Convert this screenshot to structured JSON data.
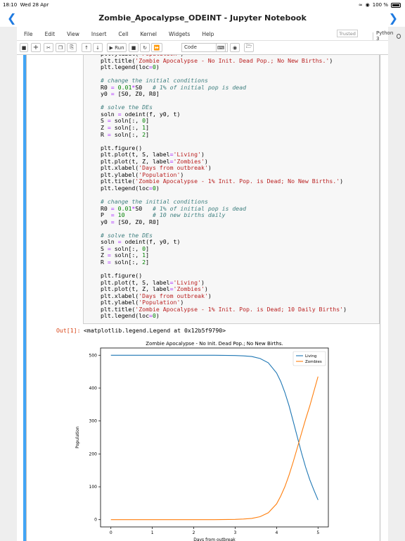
{
  "status": {
    "time": "18:10",
    "date": "Wed 28 Apr",
    "battery": "100 %"
  },
  "window": {
    "title": "Zombie_Apocalypse_ODEINT - Jupyter Notebook"
  },
  "menu": {
    "items": [
      "File",
      "Edit",
      "View",
      "Insert",
      "Cell",
      "Kernel",
      "Widgets",
      "Help"
    ],
    "trusted": "Trusted",
    "kernel_name": "Python 3"
  },
  "toolbar": {
    "run_label": "Run",
    "cell_type": "Code"
  },
  "code_lines": [
    "plt.ylabel('Population')",
    "plt.title('Zombie Apocalypse - No Init. Dead Pop.; No New Births.')",
    "plt.legend(loc=0)",
    "",
    "# change the initial conditions",
    "R0 = 0.01*S0   # 1% of initial pop is dead",
    "y0 = [S0, Z0, R0]",
    "",
    "# solve the DEs",
    "soln = odeint(f, y0, t)",
    "S = soln[:, 0]",
    "Z = soln[:, 1]",
    "R = soln[:, 2]",
    "",
    "plt.figure()",
    "plt.plot(t, S, label='Living')",
    "plt.plot(t, Z, label='Zombies')",
    "plt.xlabel('Days from outbreak')",
    "plt.ylabel('Population')",
    "plt.title('Zombie Apocalypse - 1% Init. Pop. is Dead; No New Births.')",
    "plt.legend(loc=0)",
    "",
    "# change the initial conditions",
    "R0 = 0.01*S0   # 1% of initial pop is dead",
    "P  = 10        # 10 new births daily",
    "y0 = [S0, Z0, R0]",
    "",
    "# solve the DEs",
    "soln = odeint(f, y0, t)",
    "S = soln[:, 0]",
    "Z = soln[:, 1]",
    "R = soln[:, 2]",
    "",
    "plt.figure()",
    "plt.plot(t, S, label='Living')",
    "plt.plot(t, Z, label='Zombies')",
    "plt.xlabel('Days from outbreak')",
    "plt.ylabel('Population')",
    "plt.title('Zombie Apocalypse - 1% Init. Pop. is Dead; 10 Daily Births')",
    "plt.legend(loc=0)"
  ],
  "output": {
    "prompt": "Out[1]:",
    "text": "<matplotlib.legend.Legend at 0x12b5f9790>"
  },
  "chart_data": {
    "type": "line",
    "title": "Zombie Apocalypse - No Init. Dead Pop.; No New Births.",
    "xlabel": "Days from outbreak",
    "ylabel": "Population",
    "xlim": [
      -0.25,
      5.25
    ],
    "ylim": [
      -22,
      522
    ],
    "xticks": [
      0,
      1,
      2,
      3,
      4,
      5
    ],
    "yticks": [
      0,
      100,
      200,
      300,
      400,
      500
    ],
    "legend_position": "upper right",
    "colors": {
      "Living": "#1f77b4",
      "Zombies": "#ff7f0e"
    },
    "series": [
      {
        "name": "Living",
        "x": [
          0,
          0.5,
          1,
          1.5,
          2,
          2.5,
          3,
          3.2,
          3.4,
          3.6,
          3.8,
          4,
          4.1,
          4.2,
          4.3,
          4.4,
          4.5,
          4.6,
          4.7,
          4.8,
          4.9,
          5
        ],
        "values": [
          500,
          500,
          500,
          500,
          500,
          500,
          499,
          498,
          496,
          490,
          477,
          446,
          420,
          387,
          347,
          300,
          252,
          204,
          160,
          122,
          90,
          60
        ]
      },
      {
        "name": "Zombies",
        "x": [
          0,
          0.5,
          1,
          1.5,
          2,
          2.5,
          3,
          3.2,
          3.4,
          3.6,
          3.8,
          4,
          4.1,
          4.2,
          4.3,
          4.4,
          4.5,
          4.6,
          4.7,
          4.8,
          4.9,
          5
        ],
        "values": [
          0,
          0,
          0,
          0,
          0,
          0,
          1,
          2,
          4,
          9,
          21,
          48,
          72,
          100,
          135,
          175,
          218,
          262,
          305,
          345,
          390,
          435
        ]
      }
    ]
  }
}
